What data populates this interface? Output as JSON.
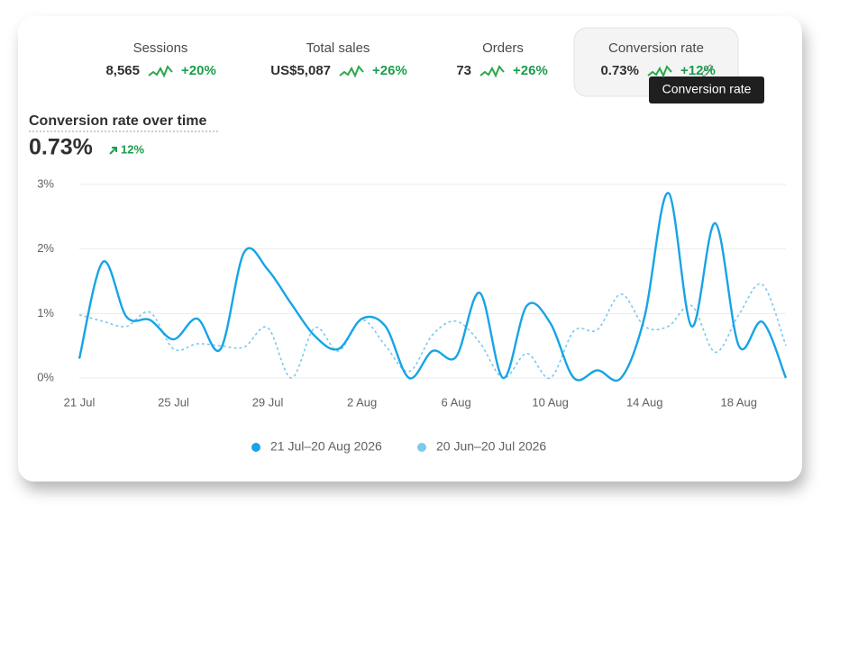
{
  "metrics": [
    {
      "label": "Sessions",
      "value": "8,565",
      "change": "+20%"
    },
    {
      "label": "Total sales",
      "value": "US$5,087",
      "change": "+26%"
    },
    {
      "label": "Orders",
      "value": "73",
      "change": "+26%"
    },
    {
      "label": "Conversion rate",
      "value": "0.73%",
      "change": "+12%"
    }
  ],
  "tooltip": "Conversion rate",
  "chart_data": {
    "type": "line",
    "title": "Conversion rate over time",
    "headline": "0.73%",
    "headline_change": "12%",
    "x": [
      "21 Jul",
      null,
      null,
      null,
      "25 Jul",
      null,
      null,
      null,
      "29 Jul",
      null,
      null,
      null,
      "2 Aug",
      null,
      null,
      null,
      "6 Aug",
      null,
      null,
      null,
      "10 Aug",
      null,
      null,
      null,
      "14 Aug",
      null,
      null,
      null,
      "18 Aug",
      null,
      null
    ],
    "ylim": [
      0,
      3
    ],
    "yticks": [
      {
        "value": 0,
        "label": "0%"
      },
      {
        "value": 1,
        "label": "1%"
      },
      {
        "value": 2,
        "label": "2%"
      },
      {
        "value": 3,
        "label": "3%"
      }
    ],
    "grid": true,
    "series": [
      {
        "name": "21 Jul–20 Aug 2026",
        "color": "#16a4e6",
        "dashed": false,
        "values": [
          0.3,
          1.8,
          0.95,
          0.9,
          0.6,
          0.92,
          0.45,
          1.95,
          1.68,
          1.15,
          0.65,
          0.45,
          0.92,
          0.8,
          0,
          0.42,
          0.33,
          1.32,
          0,
          1.12,
          0.85,
          0,
          0.12,
          0,
          0.95,
          2.87,
          0.8,
          2.4,
          0.5,
          0.87,
          0
        ]
      },
      {
        "name": "20 Jun–20 Jul 2026",
        "color": "#7cc9ec",
        "dashed": true,
        "values": [
          0.98,
          0.88,
          0.8,
          1.02,
          0.45,
          0.53,
          0.5,
          0.48,
          0.78,
          0,
          0.78,
          0.42,
          0.9,
          0.5,
          0.1,
          0.67,
          0.88,
          0.55,
          0,
          0.38,
          0,
          0.73,
          0.75,
          1.3,
          0.8,
          0.8,
          1.12,
          0.4,
          0.98,
          1.45,
          0.5
        ]
      }
    ]
  }
}
